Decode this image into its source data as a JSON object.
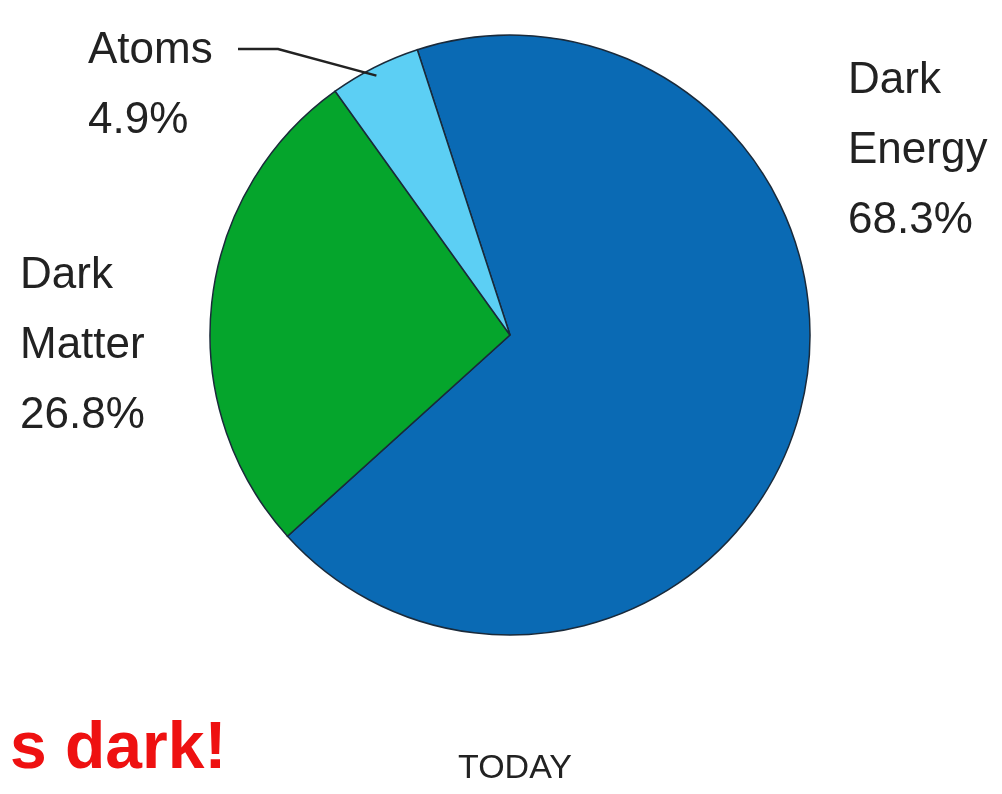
{
  "chart_data": {
    "type": "pie",
    "title": "TODAY",
    "categories": [
      "Dark Energy",
      "Dark Matter",
      "Atoms"
    ],
    "values": [
      68.3,
      26.8,
      4.9
    ],
    "colors": [
      "#0a6ab4",
      "#05a52c",
      "#5ccff4"
    ],
    "value_labels": [
      "68.3%",
      "26.8%",
      "4.9%"
    ],
    "annotations": [
      "s dark!"
    ]
  }
}
